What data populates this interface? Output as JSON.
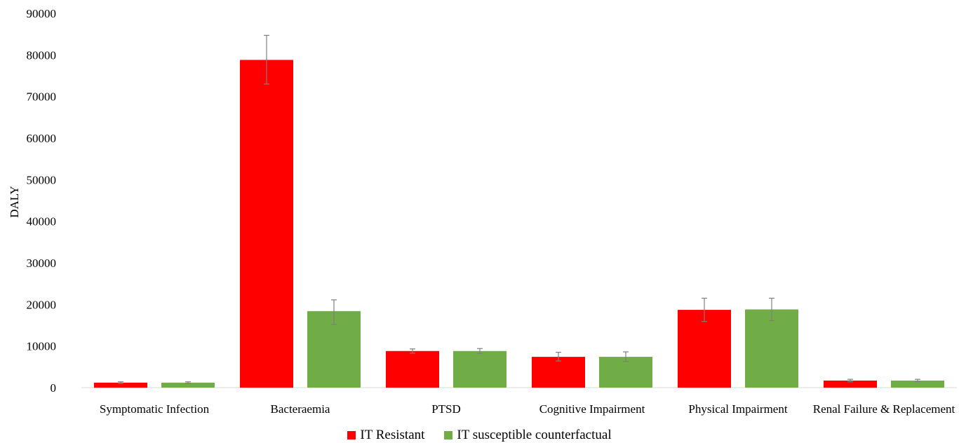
{
  "chart_data": {
    "type": "bar",
    "ylabel": "DALY",
    "ylim": [
      0,
      90000
    ],
    "yticks": [
      0,
      10000,
      20000,
      30000,
      40000,
      50000,
      60000,
      70000,
      80000,
      90000
    ],
    "grid": false,
    "legend_position": "bottom",
    "categories": [
      "Symptomatic Infection",
      "Bacteraemia",
      "PTSD",
      "Cognitive Impairment",
      "Physical Impairment",
      "Renal Failure & Replacement"
    ],
    "series": [
      {
        "name": "IT Resistant",
        "color": "#ff0000",
        "values": [
          1200,
          78800,
          8800,
          7400,
          18700,
          1700
        ],
        "err_low": [
          1000,
          73000,
          8300,
          6400,
          15900,
          1400
        ],
        "err_high": [
          1400,
          84700,
          9300,
          8500,
          21500,
          2000
        ]
      },
      {
        "name": "IT susceptible counterfactual",
        "color": "#70ad47",
        "values": [
          1200,
          18400,
          8800,
          7400,
          18800,
          1700
        ],
        "err_low": [
          1000,
          15200,
          8200,
          6300,
          16100,
          1400
        ],
        "err_high": [
          1400,
          21100,
          9400,
          8600,
          21500,
          2000
        ]
      }
    ]
  }
}
